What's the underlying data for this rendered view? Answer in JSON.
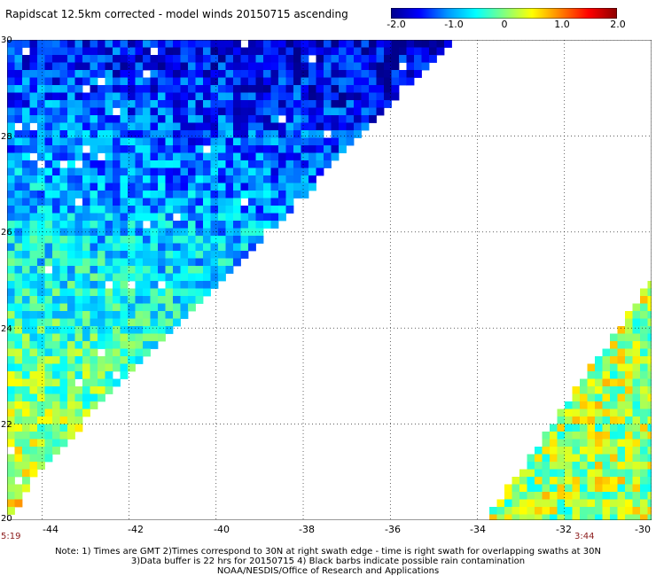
{
  "title": "Rapidscat 12.5km corrected - model winds 20150715 ascending",
  "colorbar": {
    "ticks": [
      "-2.0",
      "-1.0",
      "0",
      "1.0",
      "2.0"
    ],
    "colors": [
      "#00008b",
      "#0000ff",
      "#0096ff",
      "#00ffff",
      "#80ff80",
      "#ffff00",
      "#ff8000",
      "#ff0000",
      "#8b0000"
    ]
  },
  "map": {
    "lat_labels": [
      "30",
      "28",
      "26",
      "24",
      "22",
      "20"
    ],
    "lon_labels": [
      "-44",
      "-42",
      "-40",
      "-38",
      "-36",
      "-34",
      "-32",
      "-30"
    ],
    "lon_range": [
      -44.8,
      -30
    ],
    "lat_range": [
      20,
      30
    ]
  },
  "times": {
    "left": "5:19",
    "right": "3:44"
  },
  "notes": [
    "Note: 1) Times are GMT 2)Times correspond to 30N at right swath edge - time is right swath for overlapping swaths at 30N",
    "3)Data buffer is 22 hrs for 20150715 4) Black barbs indicate possible rain contamination",
    "NOAA/NESDIS/Office of Research and Applications"
  ]
}
